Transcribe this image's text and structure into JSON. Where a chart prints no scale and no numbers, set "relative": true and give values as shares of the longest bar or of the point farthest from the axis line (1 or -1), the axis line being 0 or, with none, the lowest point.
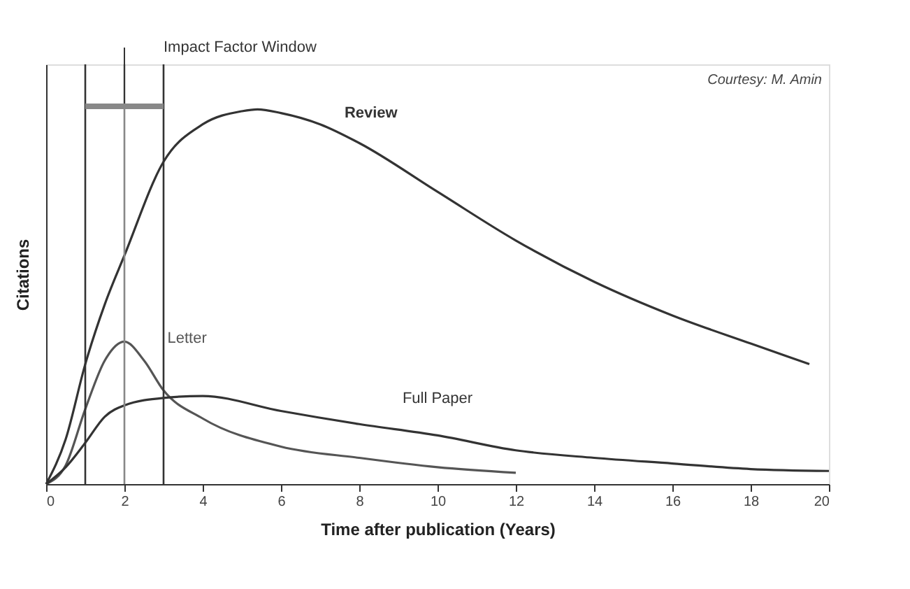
{
  "chart_data": {
    "type": "line",
    "relative": true,
    "xlabel": "Time after publication (Years)",
    "ylabel": "Citations",
    "xlim": [
      0,
      20
    ],
    "xticks": [
      0,
      2,
      4,
      6,
      8,
      10,
      12,
      14,
      16,
      18,
      20
    ],
    "grid": false,
    "marker": "none",
    "line_style": "solid",
    "series": [
      {
        "name": "Review",
        "color": "#333333",
        "x": [
          0,
          0.5,
          1,
          1.5,
          2,
          3,
          4,
          5,
          5.4,
          6,
          7,
          8,
          10,
          12,
          14,
          16,
          18,
          19.5
        ],
        "values": [
          0,
          0.12,
          0.32,
          0.48,
          0.61,
          0.86,
          0.96,
          0.995,
          1,
          0.99,
          0.96,
          0.91,
          0.78,
          0.65,
          0.54,
          0.45,
          0.375,
          0.32
        ]
      },
      {
        "name": "Letter",
        "color": "#555555",
        "x": [
          0,
          0.5,
          1,
          1.5,
          2,
          2.5,
          3,
          4,
          6,
          8,
          10,
          12
        ],
        "values": [
          0,
          0.05,
          0.2,
          0.33,
          0.38,
          0.33,
          0.25,
          0.175,
          0.1,
          0.07,
          0.045,
          0.03
        ]
      },
      {
        "name": "Full Paper",
        "color": "#333333",
        "x": [
          0,
          0.5,
          1,
          1.5,
          2,
          3,
          4,
          6,
          8,
          10,
          12,
          14,
          16,
          18,
          20
        ],
        "values": [
          0,
          0.045,
          0.11,
          0.18,
          0.21,
          0.23,
          0.235,
          0.195,
          0.16,
          0.13,
          0.09,
          0.07,
          0.055,
          0.04,
          0.035
        ]
      }
    ],
    "ref_lines": [
      {
        "axis": "x",
        "value": 1,
        "color": "#333333"
      },
      {
        "axis": "x",
        "value": 2,
        "color": "#888888"
      },
      {
        "axis": "x",
        "value": 3,
        "color": "#333333"
      }
    ],
    "annotations": [
      "Impact Factor Window",
      "Courtesy: M. Amin"
    ]
  }
}
